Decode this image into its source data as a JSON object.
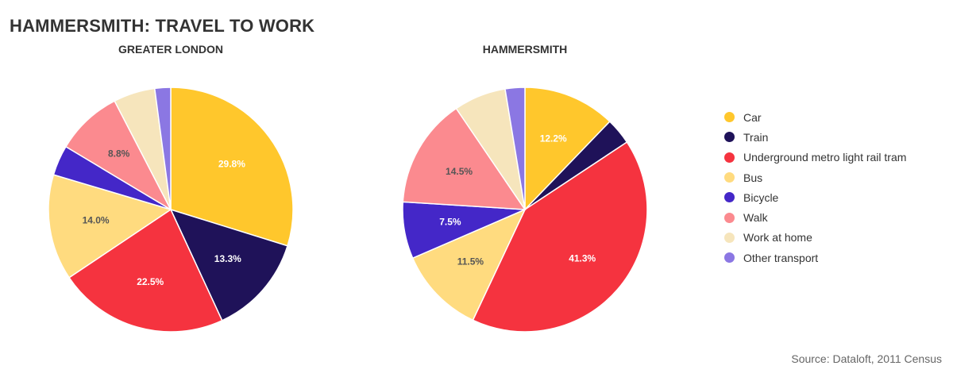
{
  "title": "HAMMERSMITH: TRAVEL TO WORK",
  "source": "Source: Dataloft, 2011 Census",
  "legend": {
    "items": [
      {
        "label": "Car",
        "color": "#FFC72C"
      },
      {
        "label": "Train",
        "color": "#1F1259"
      },
      {
        "label": "Underground metro light rail tram",
        "color": "#F5333F"
      },
      {
        "label": "Bus",
        "color": "#FFDB7F"
      },
      {
        "label": "Bicycle",
        "color": "#4427C8"
      },
      {
        "label": "Walk",
        "color": "#FB8A8F"
      },
      {
        "label": "Work at home",
        "color": "#F6E5BC"
      },
      {
        "label": "Other transport",
        "color": "#8B77E3"
      }
    ]
  },
  "chart_data": [
    {
      "type": "pie",
      "title": "GREATER LONDON",
      "categories": [
        "Car",
        "Train",
        "Underground metro light rail tram",
        "Bus",
        "Bicycle",
        "Walk",
        "Work at home",
        "Other transport"
      ],
      "values": [
        29.8,
        13.3,
        22.5,
        14.0,
        4.0,
        8.8,
        5.5,
        2.1
      ],
      "labels": [
        "29.8%",
        "13.3%",
        "22.5%",
        "14.0%",
        "",
        "8.8%",
        "",
        ""
      ],
      "label_colors": [
        "#ffffff",
        "#ffffff",
        "#ffffff",
        "#555555",
        "#ffffff",
        "#555555",
        "#555555",
        "#ffffff"
      ]
    },
    {
      "type": "pie",
      "title": "HAMMERSMITH",
      "categories": [
        "Car",
        "Train",
        "Underground metro light rail tram",
        "Bus",
        "Bicycle",
        "Walk",
        "Work at home",
        "Other transport"
      ],
      "values": [
        12.2,
        3.5,
        41.3,
        11.5,
        7.5,
        14.5,
        6.9,
        2.6
      ],
      "labels": [
        "12.2%",
        "",
        "41.3%",
        "11.5%",
        "7.5%",
        "14.5%",
        "",
        ""
      ],
      "label_colors": [
        "#ffffff",
        "#ffffff",
        "#ffffff",
        "#555555",
        "#ffffff",
        "#555555",
        "#555555",
        "#ffffff"
      ]
    }
  ]
}
